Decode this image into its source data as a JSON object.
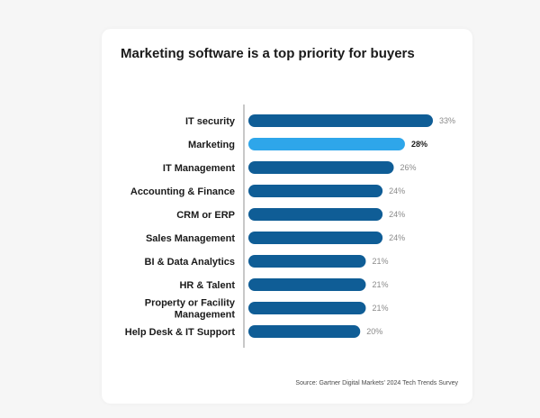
{
  "colors": {
    "bar": "#0f5d96",
    "bar_highlight": "#2ea6ea",
    "axis": "#c8c8c8"
  },
  "chart_data": {
    "type": "bar",
    "orientation": "horizontal",
    "title": "Marketing software is a top priority for buyers",
    "categories": [
      [
        "IT security"
      ],
      [
        "Marketing"
      ],
      [
        "IT Management"
      ],
      [
        "Accounting & Finance"
      ],
      [
        "CRM or ERP"
      ],
      [
        "Sales Management"
      ],
      [
        "BI & Data Analytics"
      ],
      [
        "HR & Talent"
      ],
      [
        "Property or Facility",
        "Management"
      ],
      [
        "Help Desk & IT Support"
      ]
    ],
    "values": [
      33,
      28,
      26,
      24,
      24,
      24,
      21,
      21,
      21,
      20
    ],
    "value_labels": [
      "33%",
      "28%",
      "26%",
      "24%",
      "24%",
      "24%",
      "21%",
      "21%",
      "21%",
      "20%"
    ],
    "highlight_index": 1,
    "unit": "%",
    "xlim": [
      0,
      33
    ],
    "grid": false,
    "source": "Source: Gartner Digital Markets' 2024 Tech Trends Survey"
  }
}
